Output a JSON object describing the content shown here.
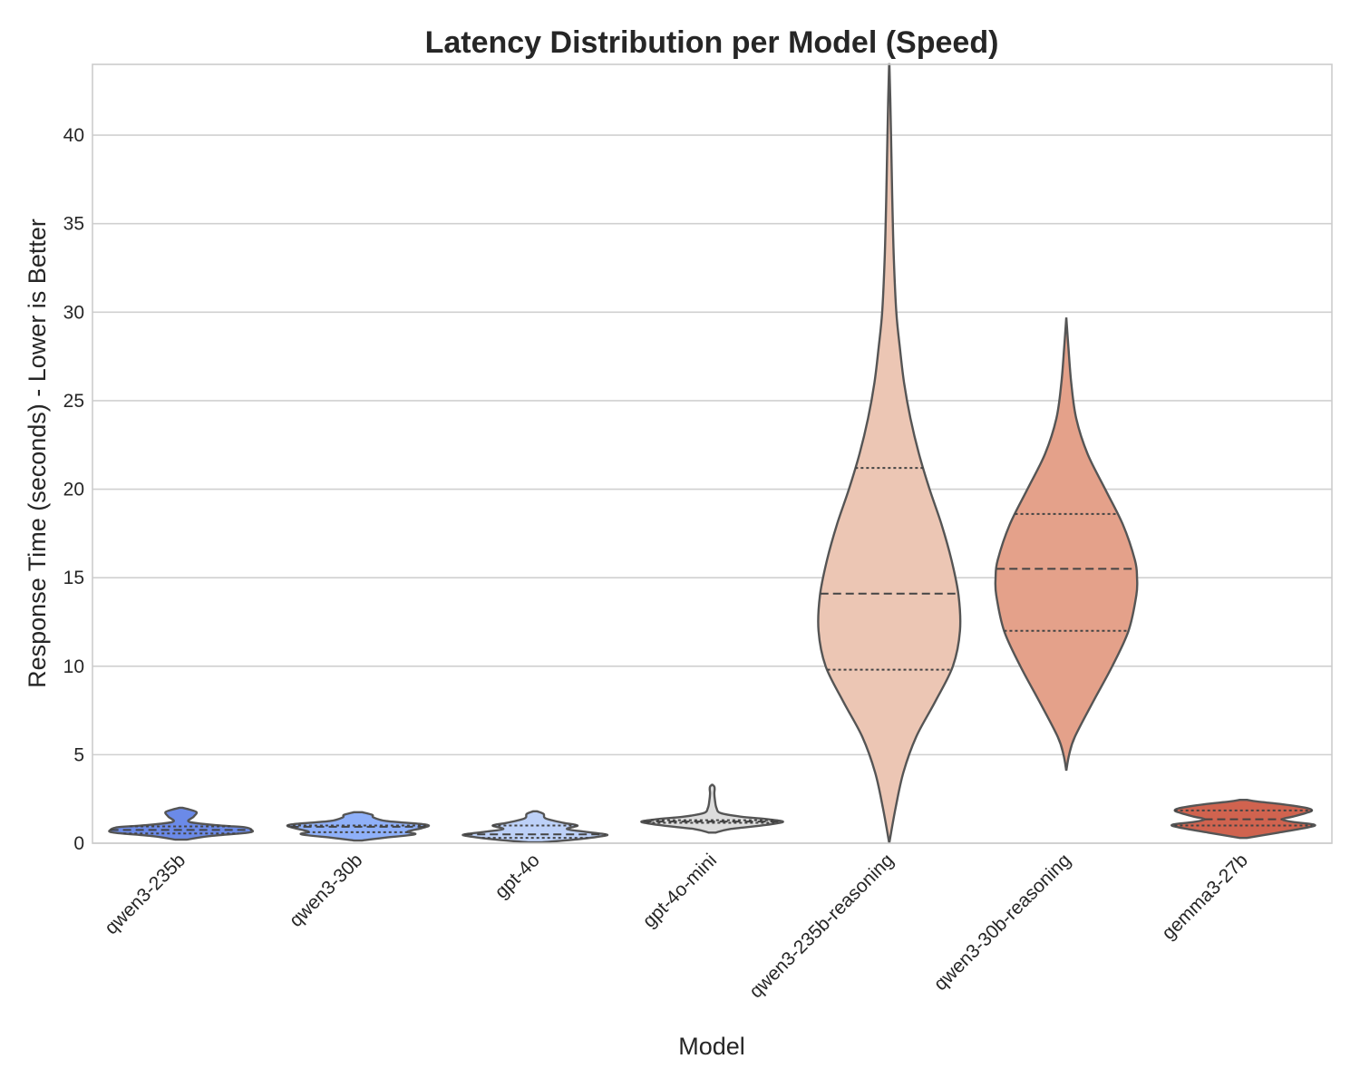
{
  "chart_data": {
    "type": "violin",
    "title": "Latency Distribution per Model (Speed)",
    "xlabel": "Model",
    "ylabel": "Response Time (seconds) - Lower is Better",
    "ylim": [
      0,
      44
    ],
    "yticks": [
      0,
      5,
      10,
      15,
      20,
      25,
      30,
      35,
      40
    ],
    "grid": "horizontal",
    "categories": [
      "qwen3-235b",
      "qwen3-30b",
      "gpt-4o",
      "gpt-4o-mini",
      "qwen3-235b-reasoning",
      "qwen3-30b-reasoning",
      "gemma3-27b"
    ],
    "series": [
      {
        "category": "qwen3-235b",
        "color": "#6b8ae8",
        "q1": 0.55,
        "median": 0.75,
        "q3": 0.95,
        "profile": [
          [
            0.2,
            0.08
          ],
          [
            0.4,
            0.4
          ],
          [
            0.6,
            0.95
          ],
          [
            0.75,
            1.0
          ],
          [
            0.9,
            0.9
          ],
          [
            1.0,
            0.55
          ],
          [
            1.2,
            0.12
          ],
          [
            1.5,
            0.18
          ],
          [
            1.75,
            0.22
          ],
          [
            1.9,
            0.12
          ],
          [
            2.0,
            0.02
          ]
        ]
      },
      {
        "category": "qwen3-30b",
        "color": "#8fb0f9",
        "q1": 0.62,
        "median": 0.93,
        "q3": 1.0,
        "profile": [
          [
            0.15,
            0.05
          ],
          [
            0.3,
            0.35
          ],
          [
            0.5,
            0.8
          ],
          [
            0.65,
            0.7
          ],
          [
            0.85,
            0.9
          ],
          [
            1.0,
            1.0
          ],
          [
            1.1,
            0.85
          ],
          [
            1.25,
            0.4
          ],
          [
            1.45,
            0.22
          ],
          [
            1.6,
            0.2
          ],
          [
            1.75,
            0.06
          ]
        ]
      },
      {
        "category": "gpt-4o",
        "color": "#bdd1f8",
        "q1": 0.3,
        "median": 0.5,
        "q3": 1.0,
        "profile": [
          [
            0.05,
            0.1
          ],
          [
            0.2,
            0.55
          ],
          [
            0.4,
            0.95
          ],
          [
            0.5,
            1.0
          ],
          [
            0.65,
            0.7
          ],
          [
            0.8,
            0.45
          ],
          [
            1.0,
            0.6
          ],
          [
            1.15,
            0.4
          ],
          [
            1.4,
            0.15
          ],
          [
            1.65,
            0.12
          ],
          [
            1.8,
            0.03
          ]
        ]
      },
      {
        "category": "gpt-4o-mini",
        "color": "#dddddd",
        "q1": 1.15,
        "median": 1.22,
        "q3": 1.3,
        "profile": [
          [
            0.6,
            0.05
          ],
          [
            0.8,
            0.25
          ],
          [
            1.0,
            0.7
          ],
          [
            1.2,
            1.0
          ],
          [
            1.35,
            0.8
          ],
          [
            1.5,
            0.4
          ],
          [
            1.7,
            0.12
          ],
          [
            2.0,
            0.06
          ],
          [
            2.4,
            0.04
          ],
          [
            2.8,
            0.03
          ],
          [
            3.05,
            0.035
          ],
          [
            3.2,
            0.03
          ],
          [
            3.3,
            0.005
          ]
        ]
      },
      {
        "category": "qwen3-235b-reasoning",
        "color": "#ecc6b4",
        "q1": 9.8,
        "median": 14.1,
        "q3": 21.2,
        "profile": [
          [
            0,
            0.0
          ],
          [
            2,
            0.09
          ],
          [
            4,
            0.2
          ],
          [
            6,
            0.38
          ],
          [
            8,
            0.65
          ],
          [
            10,
            0.9
          ],
          [
            12,
            1.0
          ],
          [
            14,
            0.98
          ],
          [
            16,
            0.88
          ],
          [
            18,
            0.74
          ],
          [
            20,
            0.57
          ],
          [
            22,
            0.42
          ],
          [
            24,
            0.3
          ],
          [
            26,
            0.21
          ],
          [
            28,
            0.15
          ],
          [
            30,
            0.1
          ],
          [
            33,
            0.065
          ],
          [
            36,
            0.045
          ],
          [
            39,
            0.03
          ],
          [
            42,
            0.015
          ],
          [
            44,
            0.002
          ]
        ]
      },
      {
        "category": "qwen3-30b-reasoning",
        "color": "#e4a18a",
        "q1": 12.0,
        "median": 15.5,
        "q3": 18.6,
        "profile": [
          [
            4.1,
            0.0
          ],
          [
            5,
            0.04
          ],
          [
            6,
            0.12
          ],
          [
            8,
            0.38
          ],
          [
            10,
            0.65
          ],
          [
            12,
            0.88
          ],
          [
            14,
            0.99
          ],
          [
            15,
            1.0
          ],
          [
            16,
            0.97
          ],
          [
            18,
            0.8
          ],
          [
            20,
            0.55
          ],
          [
            22,
            0.3
          ],
          [
            24,
            0.14
          ],
          [
            26,
            0.07
          ],
          [
            28,
            0.03
          ],
          [
            29.7,
            0.0
          ]
        ]
      },
      {
        "category": "gemma3-27b",
        "color": "#d0634f",
        "q1": 1.0,
        "median": 1.35,
        "q3": 1.85,
        "profile": [
          [
            0.3,
            0.05
          ],
          [
            0.6,
            0.5
          ],
          [
            0.9,
            0.92
          ],
          [
            1.05,
            1.0
          ],
          [
            1.2,
            0.7
          ],
          [
            1.35,
            0.55
          ],
          [
            1.5,
            0.7
          ],
          [
            1.7,
            0.88
          ],
          [
            1.85,
            0.97
          ],
          [
            2.0,
            0.88
          ],
          [
            2.2,
            0.55
          ],
          [
            2.35,
            0.2
          ],
          [
            2.45,
            0.05
          ]
        ]
      }
    ]
  }
}
